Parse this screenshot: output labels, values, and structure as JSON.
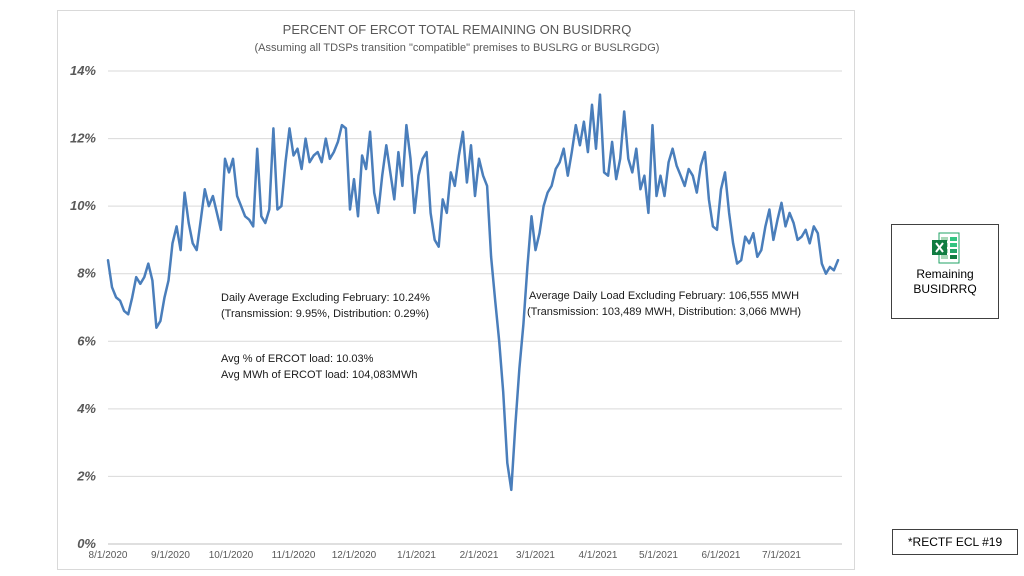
{
  "chart_data": {
    "type": "line",
    "title": "PERCENT OF ERCOT TOTAL REMAINING ON BUSIDRRQ",
    "subtitle": "(Assuming all TDSPs transition \"compatible\" premises to BUSLRG or BUSLRGDG)",
    "xlabel": "",
    "ylabel": "",
    "ylim": [
      0,
      14
    ],
    "y_ticks": [
      "0%",
      "2%",
      "4%",
      "6%",
      "8%",
      "10%",
      "12%",
      "14%"
    ],
    "x_ticks": [
      "8/1/2020",
      "9/1/2020",
      "10/1/2020",
      "11/1/2020",
      "12/1/2020",
      "1/1/2021",
      "2/1/2021",
      "3/1/2021",
      "4/1/2021",
      "5/1/2021",
      "6/1/2021",
      "7/1/2021"
    ],
    "x_range": [
      "2020-08-01",
      "2021-07-31"
    ],
    "grid": "horizontal",
    "color": "#4a7ebb",
    "series": [
      {
        "points": [
          [
            "2020-08-01",
            8.4
          ],
          [
            "2020-08-03",
            7.6
          ],
          [
            "2020-08-05",
            7.3
          ],
          [
            "2020-08-07",
            7.2
          ],
          [
            "2020-08-09",
            6.9
          ],
          [
            "2020-08-11",
            6.8
          ],
          [
            "2020-08-13",
            7.3
          ],
          [
            "2020-08-15",
            7.9
          ],
          [
            "2020-08-17",
            7.7
          ],
          [
            "2020-08-19",
            7.9
          ],
          [
            "2020-08-21",
            8.3
          ],
          [
            "2020-08-23",
            7.8
          ],
          [
            "2020-08-25",
            6.4
          ],
          [
            "2020-08-27",
            6.6
          ],
          [
            "2020-08-29",
            7.3
          ],
          [
            "2020-08-31",
            7.8
          ],
          [
            "2020-09-02",
            8.9
          ],
          [
            "2020-09-04",
            9.4
          ],
          [
            "2020-09-06",
            8.7
          ],
          [
            "2020-09-08",
            10.4
          ],
          [
            "2020-09-10",
            9.5
          ],
          [
            "2020-09-12",
            8.9
          ],
          [
            "2020-09-14",
            8.7
          ],
          [
            "2020-09-16",
            9.6
          ],
          [
            "2020-09-18",
            10.5
          ],
          [
            "2020-09-20",
            10.0
          ],
          [
            "2020-09-22",
            10.3
          ],
          [
            "2020-09-24",
            9.8
          ],
          [
            "2020-09-26",
            9.3
          ],
          [
            "2020-09-28",
            11.4
          ],
          [
            "2020-09-30",
            11.0
          ],
          [
            "2020-10-02",
            11.4
          ],
          [
            "2020-10-04",
            10.3
          ],
          [
            "2020-10-06",
            10.0
          ],
          [
            "2020-10-08",
            9.7
          ],
          [
            "2020-10-10",
            9.6
          ],
          [
            "2020-10-12",
            9.4
          ],
          [
            "2020-10-14",
            11.7
          ],
          [
            "2020-10-16",
            9.7
          ],
          [
            "2020-10-18",
            9.5
          ],
          [
            "2020-10-20",
            9.9
          ],
          [
            "2020-10-22",
            12.3
          ],
          [
            "2020-10-24",
            9.9
          ],
          [
            "2020-10-26",
            10.0
          ],
          [
            "2020-10-28",
            11.3
          ],
          [
            "2020-10-30",
            12.3
          ],
          [
            "2020-11-01",
            11.5
          ],
          [
            "2020-11-03",
            11.7
          ],
          [
            "2020-11-05",
            11.1
          ],
          [
            "2020-11-07",
            12.0
          ],
          [
            "2020-11-09",
            11.3
          ],
          [
            "2020-11-11",
            11.5
          ],
          [
            "2020-11-13",
            11.6
          ],
          [
            "2020-11-15",
            11.3
          ],
          [
            "2020-11-17",
            12.0
          ],
          [
            "2020-11-19",
            11.4
          ],
          [
            "2020-11-21",
            11.6
          ],
          [
            "2020-11-23",
            11.9
          ],
          [
            "2020-11-25",
            12.4
          ],
          [
            "2020-11-27",
            12.3
          ],
          [
            "2020-11-29",
            9.9
          ],
          [
            "2020-12-01",
            10.8
          ],
          [
            "2020-12-03",
            9.7
          ],
          [
            "2020-12-05",
            11.5
          ],
          [
            "2020-12-07",
            11.1
          ],
          [
            "2020-12-09",
            12.2
          ],
          [
            "2020-12-11",
            10.4
          ],
          [
            "2020-12-13",
            9.8
          ],
          [
            "2020-12-15",
            10.9
          ],
          [
            "2020-12-17",
            11.8
          ],
          [
            "2020-12-19",
            11.0
          ],
          [
            "2020-12-21",
            10.2
          ],
          [
            "2020-12-23",
            11.6
          ],
          [
            "2020-12-25",
            10.6
          ],
          [
            "2020-12-27",
            12.4
          ],
          [
            "2020-12-29",
            11.4
          ],
          [
            "2020-12-31",
            9.8
          ],
          [
            "2021-01-02",
            10.9
          ],
          [
            "2021-01-04",
            11.4
          ],
          [
            "2021-01-06",
            11.6
          ],
          [
            "2021-01-08",
            9.8
          ],
          [
            "2021-01-10",
            9.0
          ],
          [
            "2021-01-12",
            8.8
          ],
          [
            "2021-01-14",
            10.2
          ],
          [
            "2021-01-16",
            9.8
          ],
          [
            "2021-01-18",
            11.0
          ],
          [
            "2021-01-20",
            10.6
          ],
          [
            "2021-01-22",
            11.5
          ],
          [
            "2021-01-24",
            12.2
          ],
          [
            "2021-01-26",
            10.7
          ],
          [
            "2021-01-28",
            11.8
          ],
          [
            "2021-01-30",
            10.3
          ],
          [
            "2021-02-01",
            11.4
          ],
          [
            "2021-02-03",
            10.9
          ],
          [
            "2021-02-05",
            10.6
          ],
          [
            "2021-02-07",
            8.5
          ],
          [
            "2021-02-09",
            7.2
          ],
          [
            "2021-02-11",
            6.0
          ],
          [
            "2021-02-13",
            4.5
          ],
          [
            "2021-02-15",
            2.4
          ],
          [
            "2021-02-17",
            1.6
          ],
          [
            "2021-02-19",
            3.5
          ],
          [
            "2021-02-21",
            5.2
          ],
          [
            "2021-02-23",
            6.5
          ],
          [
            "2021-02-25",
            8.2
          ],
          [
            "2021-02-27",
            9.7
          ],
          [
            "2021-03-01",
            8.7
          ],
          [
            "2021-03-03",
            9.2
          ],
          [
            "2021-03-05",
            10.0
          ],
          [
            "2021-03-07",
            10.4
          ],
          [
            "2021-03-09",
            10.6
          ],
          [
            "2021-03-11",
            11.1
          ],
          [
            "2021-03-13",
            11.3
          ],
          [
            "2021-03-15",
            11.7
          ],
          [
            "2021-03-17",
            10.9
          ],
          [
            "2021-03-19",
            11.6
          ],
          [
            "2021-03-21",
            12.4
          ],
          [
            "2021-03-23",
            11.8
          ],
          [
            "2021-03-25",
            12.5
          ],
          [
            "2021-03-27",
            11.6
          ],
          [
            "2021-03-29",
            13.0
          ],
          [
            "2021-03-31",
            11.7
          ],
          [
            "2021-04-02",
            13.3
          ],
          [
            "2021-04-04",
            11.0
          ],
          [
            "2021-04-06",
            10.9
          ],
          [
            "2021-04-08",
            11.9
          ],
          [
            "2021-04-10",
            10.8
          ],
          [
            "2021-04-12",
            11.4
          ],
          [
            "2021-04-14",
            12.8
          ],
          [
            "2021-04-16",
            11.4
          ],
          [
            "2021-04-18",
            11.0
          ],
          [
            "2021-04-20",
            11.7
          ],
          [
            "2021-04-22",
            10.5
          ],
          [
            "2021-04-24",
            10.9
          ],
          [
            "2021-04-26",
            9.8
          ],
          [
            "2021-04-28",
            12.4
          ],
          [
            "2021-04-30",
            10.3
          ],
          [
            "2021-05-02",
            10.9
          ],
          [
            "2021-05-04",
            10.3
          ],
          [
            "2021-05-06",
            11.3
          ],
          [
            "2021-05-08",
            11.7
          ],
          [
            "2021-05-10",
            11.2
          ],
          [
            "2021-05-12",
            10.9
          ],
          [
            "2021-05-14",
            10.6
          ],
          [
            "2021-05-16",
            11.1
          ],
          [
            "2021-05-18",
            10.9
          ],
          [
            "2021-05-20",
            10.4
          ],
          [
            "2021-05-22",
            11.2
          ],
          [
            "2021-05-24",
            11.6
          ],
          [
            "2021-05-26",
            10.2
          ],
          [
            "2021-05-28",
            9.4
          ],
          [
            "2021-05-30",
            9.3
          ],
          [
            "2021-06-01",
            10.5
          ],
          [
            "2021-06-03",
            11.0
          ],
          [
            "2021-06-05",
            9.8
          ],
          [
            "2021-06-07",
            8.9
          ],
          [
            "2021-06-09",
            8.3
          ],
          [
            "2021-06-11",
            8.4
          ],
          [
            "2021-06-13",
            9.1
          ],
          [
            "2021-06-15",
            8.9
          ],
          [
            "2021-06-17",
            9.2
          ],
          [
            "2021-06-19",
            8.5
          ],
          [
            "2021-06-21",
            8.7
          ],
          [
            "2021-06-23",
            9.4
          ],
          [
            "2021-06-25",
            9.9
          ],
          [
            "2021-06-27",
            9.0
          ],
          [
            "2021-06-29",
            9.6
          ],
          [
            "2021-07-01",
            10.1
          ],
          [
            "2021-07-03",
            9.4
          ],
          [
            "2021-07-05",
            9.8
          ],
          [
            "2021-07-07",
            9.5
          ],
          [
            "2021-07-09",
            9.0
          ],
          [
            "2021-07-11",
            9.1
          ],
          [
            "2021-07-13",
            9.3
          ],
          [
            "2021-07-15",
            8.9
          ],
          [
            "2021-07-17",
            9.4
          ],
          [
            "2021-07-19",
            9.2
          ],
          [
            "2021-07-21",
            8.3
          ],
          [
            "2021-07-23",
            8.0
          ],
          [
            "2021-07-25",
            8.2
          ],
          [
            "2021-07-27",
            8.1
          ],
          [
            "2021-07-29",
            8.4
          ]
        ]
      }
    ]
  },
  "annotations": {
    "daily_avg_line1": "Daily Average Excluding February: 10.24%",
    "daily_avg_line2": "(Transmission: 9.95%, Distribution: 0.29%)",
    "avg_pct_line1": "Avg % of ERCOT load: 10.03%",
    "avg_pct_line2": "Avg MWh of ERCOT load: 104,083MWh",
    "avg_load_line1": "Average Daily Load Excluding February: 106,555 MWH",
    "avg_load_line2": "(Transmission: 103,489 MWH, Distribution: 3,066 MWH)"
  },
  "excel_attachment": {
    "icon": "excel-icon",
    "label_line1": "Remaining",
    "label_line2": "BUSIDRRQ"
  },
  "reference": {
    "text": "*RECTF ECL #19"
  }
}
